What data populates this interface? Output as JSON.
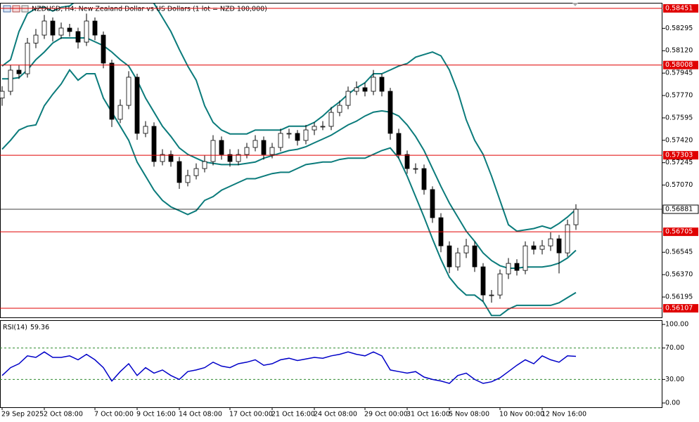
{
  "chart_data": [
    {
      "type": "candlestick",
      "title": "NZDUSD, H4:  New Zealand Dollar vs US Dollars (1 lot = NZD 100,000)",
      "categories": [
        "29 Sep 2025",
        null,
        null,
        null,
        null,
        "2 Oct 08:00",
        null,
        null,
        null,
        null,
        null,
        "7 Oct 00:00",
        null,
        null,
        null,
        null,
        "9 Oct 16:00",
        null,
        null,
        null,
        null,
        "14 Oct 08:00",
        null,
        null,
        null,
        null,
        null,
        "17 Oct 00:00",
        null,
        null,
        null,
        null,
        "21 Oct 16:00",
        null,
        null,
        null,
        null,
        "24 Oct 08:00",
        null,
        null,
        null,
        null,
        null,
        "29 Oct 00:00",
        null,
        null,
        null,
        null,
        "31 Oct 16:00",
        null,
        null,
        null,
        null,
        "5 Nov 08:00",
        null,
        null,
        null,
        null,
        null,
        "10 Nov 00:00",
        null,
        null,
        null,
        null,
        "12 Nov 16:00",
        null,
        null,
        null,
        null
      ],
      "open": [
        0.5775,
        0.57803,
        0.57968,
        0.5794,
        0.5818,
        0.58242,
        0.58352,
        0.58242,
        0.58297,
        0.5827,
        0.58187,
        0.58352,
        0.58242,
        0.58023,
        0.57584,
        0.57693,
        0.57913,
        0.57474,
        0.57529,
        0.57254,
        0.57309,
        0.57254,
        0.5709,
        0.57144,
        0.57199,
        0.57254,
        0.57419,
        0.57309,
        0.57254,
        0.57309,
        0.57364,
        0.57419,
        0.57309,
        0.57364,
        0.57474,
        0.57474,
        0.57419,
        0.57501,
        0.57529,
        0.57529,
        0.57638,
        0.57693,
        0.57803,
        0.57831,
        0.57803,
        0.57913,
        0.57803,
        0.57474,
        0.57309,
        0.57199,
        0.57199,
        0.57035,
        0.56815,
        0.56595,
        0.56431,
        0.5654,
        0.56595,
        0.56431,
        0.56211,
        0.56211,
        0.56376,
        0.56458,
        0.56403,
        0.56595,
        0.56568,
        0.56595,
        0.5665,
        0.5654,
        0.5676
      ],
      "high": [
        0.57843,
        0.5801,
        0.58005,
        0.5822,
        0.5829,
        0.584,
        0.5838,
        0.5834,
        0.5833,
        0.583,
        0.5841,
        0.5838,
        0.5827,
        0.5805,
        0.5774,
        0.5796,
        0.5794,
        0.5757,
        0.5756,
        0.5735,
        0.5734,
        0.5729,
        0.5719,
        0.5724,
        0.573,
        0.5746,
        0.5745,
        0.5735,
        0.5735,
        0.574,
        0.5746,
        0.5745,
        0.574,
        0.5751,
        0.5751,
        0.575,
        0.5754,
        0.5756,
        0.5757,
        0.5768,
        0.5773,
        0.5784,
        0.5788,
        0.5787,
        0.5797,
        0.5794,
        0.5783,
        0.5751,
        0.5734,
        0.5724,
        0.5723,
        0.5706,
        0.5685,
        0.5663,
        0.5658,
        0.5665,
        0.5663,
        0.5646,
        0.5625,
        0.5641,
        0.565,
        0.5649,
        0.5663,
        0.5663,
        0.5664,
        0.567,
        0.5668,
        0.568,
        0.5692
      ],
      "low": [
        0.5769,
        0.57773,
        0.579,
        0.5791,
        0.5814,
        0.58212,
        0.58192,
        0.58212,
        0.5823,
        0.58137,
        0.58157,
        0.58202,
        0.57983,
        0.57524,
        0.57554,
        0.57663,
        0.57424,
        0.57444,
        0.57214,
        0.57224,
        0.57214,
        0.5704,
        0.5706,
        0.57114,
        0.57169,
        0.57224,
        0.57269,
        0.57214,
        0.57224,
        0.57279,
        0.57334,
        0.57269,
        0.57279,
        0.57334,
        0.57434,
        0.57379,
        0.57389,
        0.57461,
        0.57499,
        0.57499,
        0.57608,
        0.57663,
        0.57773,
        0.57763,
        0.57773,
        0.57763,
        0.57424,
        0.57279,
        0.57159,
        0.57159,
        0.56995,
        0.56775,
        0.56545,
        0.56381,
        0.56401,
        0.565,
        0.56391,
        0.56161,
        0.56151,
        0.56181,
        0.56336,
        0.56363,
        0.56373,
        0.56528,
        0.56528,
        0.56555,
        0.5638,
        0.5651,
        0.5672
      ],
      "close": [
        0.57803,
        0.57968,
        0.5794,
        0.5818,
        0.58242,
        0.58352,
        0.58242,
        0.58297,
        0.5827,
        0.58187,
        0.58352,
        0.58242,
        0.58023,
        0.57584,
        0.57693,
        0.57913,
        0.57474,
        0.57529,
        0.57254,
        0.57309,
        0.57254,
        0.5709,
        0.57144,
        0.57199,
        0.57254,
        0.57419,
        0.57309,
        0.57254,
        0.57309,
        0.57364,
        0.57419,
        0.57309,
        0.57364,
        0.57474,
        0.57474,
        0.57419,
        0.57501,
        0.57529,
        0.57529,
        0.57638,
        0.57693,
        0.57803,
        0.57831,
        0.57803,
        0.57913,
        0.57803,
        0.57474,
        0.57309,
        0.57199,
        0.57199,
        0.57035,
        0.56815,
        0.56595,
        0.56431,
        0.5654,
        0.56595,
        0.56431,
        0.56211,
        0.56211,
        0.56376,
        0.56458,
        0.56403,
        0.56595,
        0.56568,
        0.56595,
        0.5665,
        0.5654,
        0.5676,
        0.56881
      ],
      "bands": [
        {
          "color": "#0b7b7b",
          "values": [
            0.58,
            0.5805,
            0.5827,
            0.5841,
            0.5845,
            0.5846,
            0.5843,
            0.5846,
            0.5847,
            0.5852,
            0.5857,
            0.5863,
            0.5868,
            0.5865,
            0.586,
            0.5857,
            0.5854,
            0.5854,
            0.5849,
            0.5838,
            0.5827,
            0.5813,
            0.58,
            0.5789,
            0.5769,
            0.5756,
            0.575,
            0.5747,
            0.5747,
            0.5747,
            0.575,
            0.575,
            0.575,
            0.575,
            0.5753,
            0.5753,
            0.5753,
            0.5756,
            0.5761,
            0.5767,
            0.5772,
            0.5778,
            0.5783,
            0.5787,
            0.5794,
            0.5794,
            0.5797,
            0.58,
            0.5802,
            0.5807,
            0.5809,
            0.5811,
            0.5808,
            0.5797,
            0.578,
            0.5758,
            0.5742,
            0.5731,
            0.5714,
            0.5695,
            0.5676,
            0.5671,
            0.5672,
            0.5673,
            0.5675,
            0.5673,
            0.5677,
            0.5682,
            0.5688
          ]
        },
        {
          "color": "#0b7b7b",
          "values": [
            0.579,
            0.579,
            0.5791,
            0.5797,
            0.5805,
            0.5811,
            0.5818,
            0.5822,
            0.5822,
            0.5822,
            0.5822,
            0.5819,
            0.5816,
            0.5811,
            0.5805,
            0.58,
            0.5789,
            0.5775,
            0.5764,
            0.5753,
            0.5745,
            0.5736,
            0.5731,
            0.5728,
            0.5725,
            0.5724,
            0.5723,
            0.5723,
            0.5723,
            0.5724,
            0.5725,
            0.5728,
            0.573,
            0.5732,
            0.5734,
            0.5735,
            0.5737,
            0.574,
            0.5743,
            0.5746,
            0.575,
            0.5754,
            0.5757,
            0.5761,
            0.5764,
            0.5765,
            0.5764,
            0.5761,
            0.5754,
            0.5745,
            0.5734,
            0.572,
            0.5706,
            0.5693,
            0.5682,
            0.5671,
            0.5663,
            0.5654,
            0.5648,
            0.5644,
            0.5642,
            0.5642,
            0.5643,
            0.5643,
            0.5643,
            0.5644,
            0.5646,
            0.565,
            0.5656
          ]
        },
        {
          "color": "#0b7b7b",
          "values": [
            0.5735,
            0.5742,
            0.575,
            0.5753,
            0.5754,
            0.5769,
            0.5778,
            0.5786,
            0.5797,
            0.5789,
            0.5794,
            0.5794,
            0.5775,
            0.5764,
            0.5753,
            0.5742,
            0.5725,
            0.5714,
            0.5703,
            0.5695,
            0.569,
            0.5687,
            0.5684,
            0.5687,
            0.5695,
            0.5698,
            0.5703,
            0.5706,
            0.5709,
            0.5712,
            0.5712,
            0.5714,
            0.5716,
            0.5717,
            0.5717,
            0.572,
            0.5723,
            0.5724,
            0.5725,
            0.5725,
            0.5727,
            0.5728,
            0.5728,
            0.5728,
            0.5731,
            0.5734,
            0.5736,
            0.5728,
            0.5714,
            0.5698,
            0.5682,
            0.5665,
            0.5649,
            0.5635,
            0.5627,
            0.5621,
            0.5621,
            0.5616,
            0.5605,
            0.5605,
            0.561,
            0.5613,
            0.5613,
            0.5613,
            0.5613,
            0.5613,
            0.5615,
            0.5619,
            0.5623
          ]
        }
      ],
      "ylim": [
        0.56036,
        0.58489
      ],
      "yticks": [
        0.58295,
        {
          "value": 0.5812,
          "label": "0.58120"
        },
        0.57945,
        {
          "value": 0.5777,
          "label": "0.57770"
        },
        0.57595,
        {
          "value": 0.5742,
          "label": "0.57420"
        },
        0.57245,
        {
          "value": 0.5707,
          "label": "0.57070"
        },
        0.56545,
        {
          "value": 0.5637,
          "label": "0.56370"
        },
        0.56195
      ],
      "levels": [
        0.58451,
        0.58008,
        0.57303,
        0.56705,
        0.56107
      ],
      "level_color": "#e00000",
      "color": "#000000"
    },
    {
      "type": "line",
      "title": "RSI(14)",
      "color": "#0000c8",
      "values": [
        35,
        45,
        50,
        60,
        58,
        65,
        58,
        58,
        60,
        55,
        62,
        55,
        45,
        28,
        40,
        50,
        35,
        45,
        38,
        42,
        35,
        30,
        40,
        42,
        45,
        52,
        47,
        45,
        50,
        52,
        55,
        48,
        50,
        55,
        57,
        54,
        56,
        58,
        57,
        60,
        62,
        65,
        62,
        60,
        65,
        60,
        42,
        40,
        38,
        40,
        33,
        30,
        28,
        25,
        35,
        38,
        30,
        25,
        27,
        32,
        40,
        48,
        55,
        50,
        60,
        55,
        52,
        60,
        59.36
      ],
      "ylim": [
        -5.4,
        104.5
      ],
      "yticks": [
        {
          "value": 100,
          "label": "100.00"
        },
        {
          "value": 70,
          "label": "70.00"
        },
        {
          "value": 30,
          "label": "30.00"
        },
        {
          "value": 0,
          "label": "0.00"
        }
      ],
      "levels": [
        70,
        30
      ],
      "level_color": "#2e8b2e"
    }
  ]
}
